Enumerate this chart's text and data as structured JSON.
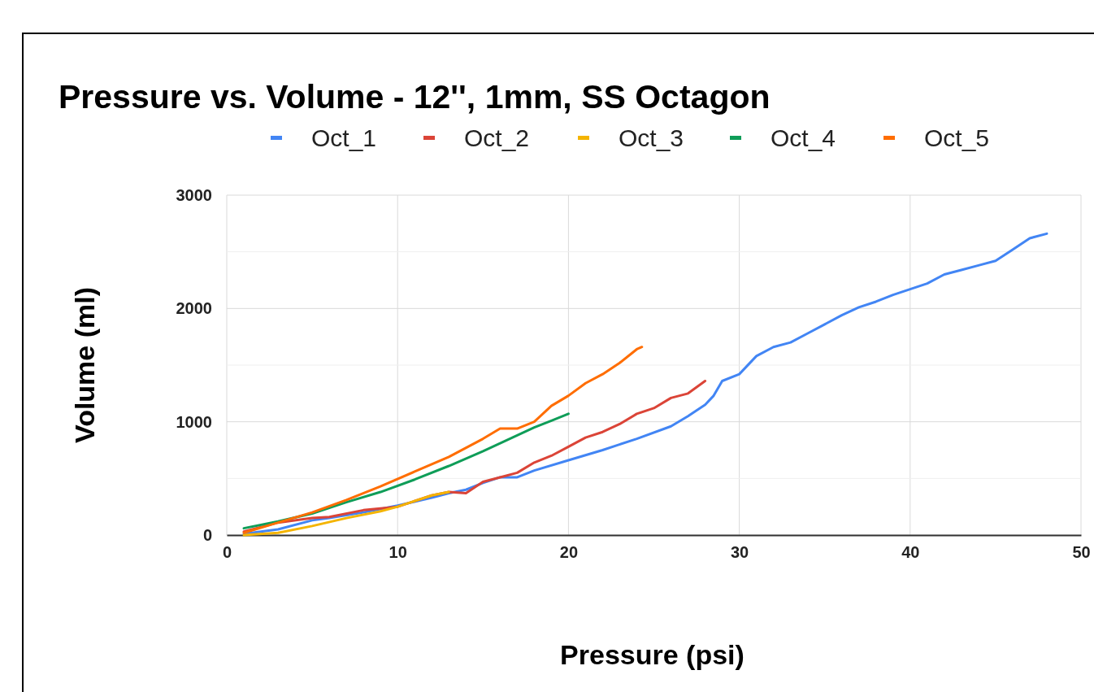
{
  "chart_data": {
    "type": "line",
    "title": "Pressure vs. Volume - 12'', 1mm, SS Octagon",
    "xlabel": "Pressure (psi)",
    "ylabel": "Volume (ml)",
    "xlim": [
      0,
      50
    ],
    "xticks": [
      0,
      10,
      20,
      30,
      40,
      50
    ],
    "ylim": [
      0,
      3000
    ],
    "yticks": [
      0,
      {
        "value": 500,
        "label": null
      },
      1000,
      {
        "value": 1500,
        "label": null
      },
      2000,
      {
        "value": 2500,
        "label": null
      },
      3000
    ],
    "grid": true,
    "legend": "top",
    "marker": "none",
    "line_style": "solid",
    "series": [
      {
        "name": "Oct_1",
        "color": "#4285f4",
        "x": [
          1,
          3,
          5,
          6,
          8,
          9,
          10,
          12,
          13,
          14,
          15,
          16,
          17,
          18,
          20,
          22,
          24,
          26,
          27,
          28,
          28.5,
          29,
          30,
          31,
          32,
          33,
          34,
          35,
          36,
          37,
          38,
          39,
          40,
          41,
          42,
          43,
          44,
          45,
          46,
          47,
          48
        ],
        "values": [
          10,
          50,
          130,
          150,
          200,
          230,
          260,
          330,
          370,
          400,
          460,
          510,
          510,
          570,
          660,
          750,
          850,
          960,
          1050,
          1150,
          1230,
          1360,
          1420,
          1580,
          1660,
          1700,
          1780,
          1860,
          1940,
          2010,
          2060,
          2120,
          2170,
          2220,
          2300,
          2340,
          2380,
          2420,
          2520,
          2620,
          2660
        ]
      },
      {
        "name": "Oct_2",
        "color": "#db4437",
        "x": [
          1,
          3,
          5,
          6,
          8,
          10,
          12,
          13,
          14,
          15,
          16,
          17,
          18,
          19,
          20,
          21,
          22,
          23,
          24,
          25,
          26,
          27,
          28
        ],
        "values": [
          30,
          110,
          150,
          160,
          220,
          250,
          350,
          380,
          370,
          470,
          510,
          550,
          640,
          700,
          780,
          860,
          910,
          980,
          1070,
          1120,
          1210,
          1250,
          1360
        ]
      },
      {
        "name": "Oct_3",
        "color": "#f4b400",
        "x": [
          1,
          3,
          5,
          7,
          9,
          10,
          11,
          12,
          13
        ],
        "values": [
          0,
          20,
          80,
          150,
          210,
          250,
          300,
          350,
          380
        ]
      },
      {
        "name": "Oct_4",
        "color": "#0f9d58",
        "x": [
          1,
          3,
          5,
          7,
          9,
          11,
          13,
          15,
          17,
          18,
          19,
          20
        ],
        "values": [
          60,
          120,
          190,
          290,
          380,
          490,
          610,
          740,
          880,
          950,
          1010,
          1070
        ]
      },
      {
        "name": "Oct_5",
        "color": "#ff6d01",
        "x": [
          1,
          3,
          5,
          7,
          9,
          11,
          13,
          15,
          16,
          17,
          18,
          19,
          20,
          21,
          22,
          23,
          24,
          24.3
        ],
        "values": [
          20,
          110,
          200,
          310,
          430,
          560,
          690,
          850,
          940,
          940,
          1000,
          1140,
          1230,
          1340,
          1420,
          1520,
          1640,
          1660
        ]
      }
    ]
  }
}
